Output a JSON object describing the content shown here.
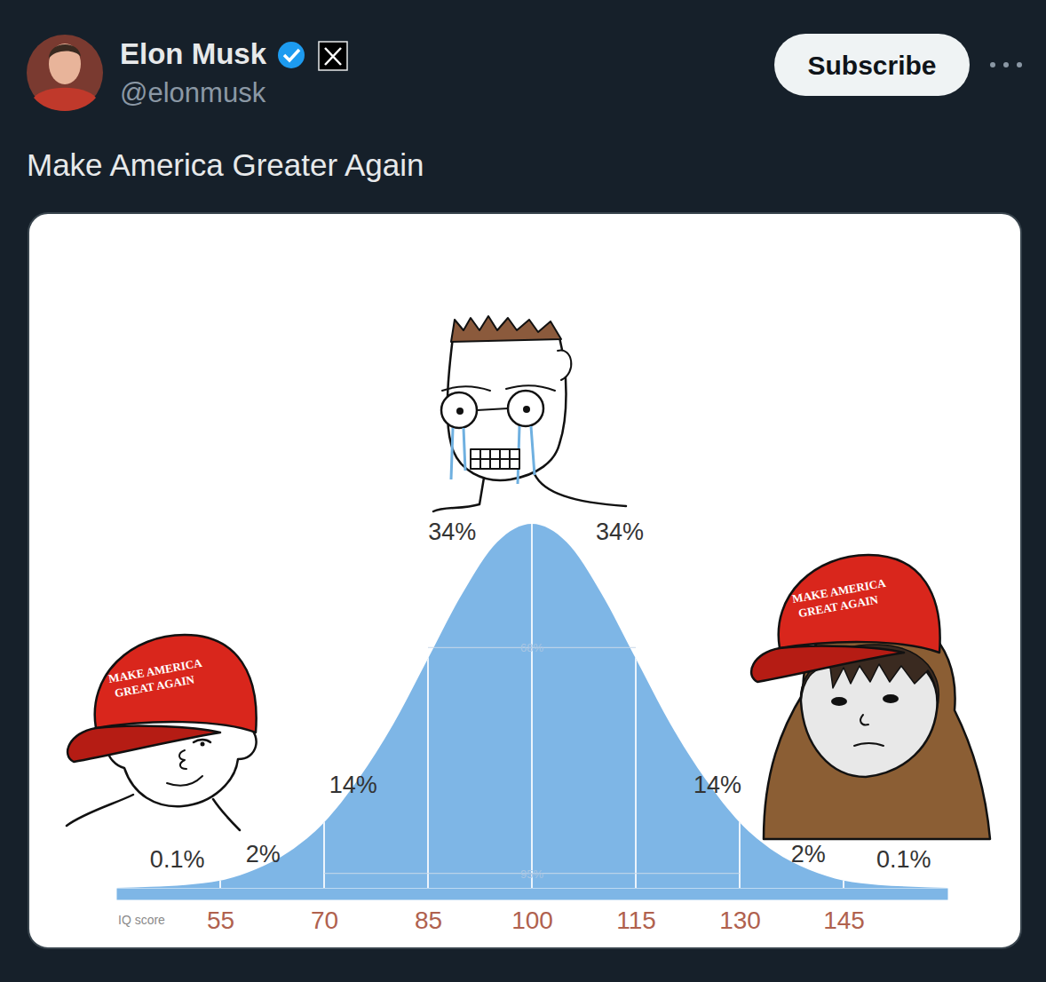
{
  "post": {
    "author": "Elon Musk",
    "handle": "@elonmusk",
    "button": "Subscribe",
    "text": "Make America Greater Again"
  },
  "illustrations": [
    {
      "cap_text": [
        "MAKE AMERICA",
        "GREAT AGAIN"
      ]
    },
    {
      "cap_text": [
        "MAKE AMERICA",
        "GREAT AGAIN"
      ]
    }
  ],
  "chart_data": {
    "type": "area",
    "color": "#7eb6e6",
    "x": [
      40,
      45,
      50,
      55,
      60,
      65,
      70,
      75,
      80,
      85,
      90,
      95,
      100,
      105,
      110,
      115,
      120,
      125,
      130,
      135,
      140,
      145,
      150,
      155,
      160
    ],
    "values": [
      0,
      0.3,
      0.8,
      2,
      5,
      10,
      18,
      30,
      45,
      63,
      81,
      95,
      100,
      95,
      81,
      63,
      45,
      30,
      18,
      10,
      5,
      2,
      0.8,
      0.3,
      0
    ],
    "xlim": [
      40,
      160
    ],
    "ylim": [
      0,
      100
    ],
    "xticks": [
      55,
      70,
      85,
      100,
      115,
      130,
      145
    ],
    "x_label": "IQ score",
    "tick_labels": "x",
    "grid": true,
    "annotations": [
      {
        "text": "34%",
        "x": 88.5,
        "y": 95.6
      },
      {
        "text": "34%",
        "x": 112.7,
        "y": 95.6
      },
      {
        "text": "14%",
        "x": 74.2,
        "y": 26
      },
      {
        "text": "14%",
        "x": 126.8,
        "y": 26
      },
      {
        "text": "2%",
        "x": 61.2,
        "y": 7
      },
      {
        "text": "2%",
        "x": 139.9,
        "y": 7
      },
      {
        "text": "0.1%",
        "x": 48.8,
        "y": 5.6
      },
      {
        "text": "0.1%",
        "x": 153.7,
        "y": 5.6
      }
    ],
    "brackets": [
      {
        "text": "68%",
        "from": 85,
        "to": 115,
        "y": 66
      },
      {
        "text": "95%",
        "from": 70,
        "to": 130,
        "y": 4
      }
    ]
  }
}
